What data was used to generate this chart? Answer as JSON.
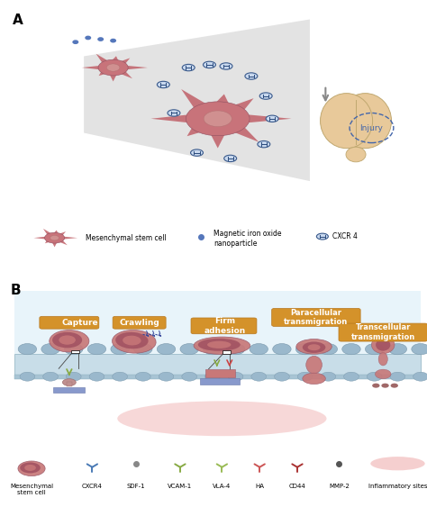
{
  "title_A": "A",
  "title_B": "B",
  "bg_color": "#ffffff",
  "msc_color": "#c8737a",
  "msc_spike_color": "#c06068",
  "msc_nucleus_color": "#d08080",
  "nanoparticle_color": "#3a5a9c",
  "injury_color": "#e8c99a",
  "injury_border": "#c0a870",
  "injury_text": "Injury",
  "injury_text_color": "#4466aa",
  "beam_color": "#d5d5d5",
  "cell_wall_top_color": "#c8dde8",
  "cell_wall_mid_color": "#b8cdd8",
  "cell_wall_interior": "#daeef8",
  "cell_dot_color": "#9ab8cc",
  "cell_dot_border": "#7a98ac",
  "label_capture": "Capture",
  "label_crawling": "Crawling",
  "label_firm": "Firm\nadhesion",
  "label_paracellular": "Paracellular\ntransmigration",
  "label_transcellular": "Transcellular\ntransmigration",
  "box_color": "#d4922a",
  "box_border": "#b87820",
  "rolling_cell_color": "#c87878",
  "rolling_nucleus_color": "#a05060",
  "rolling_inner_color": "#c09090",
  "legend_labels": [
    "Mesenchymal\nstem cell",
    "CXCR4",
    "SDF-1",
    "VCAM-1",
    "VLA-4",
    "HA",
    "CD44",
    "MMP-2",
    "Inflammatory sites"
  ],
  "cxcr4_color": "#4a7ab5",
  "sdf1_color": "#888888",
  "vcam1_color": "#88aa44",
  "vla4_color": "#99bb55",
  "ha_color": "#cc5555",
  "cd44_color": "#aa3333",
  "mmp2_color": "#555555",
  "inflam_color": "#e88888",
  "green_arrow": "#88aa44",
  "red_arrow": "#cc4444"
}
